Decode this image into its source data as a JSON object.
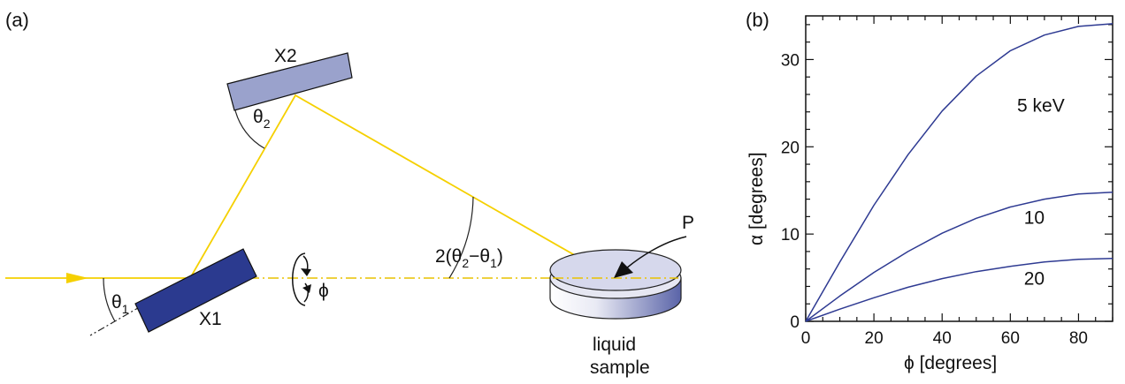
{
  "panel_a": {
    "label": "(a)",
    "crystal_x1": "X1",
    "crystal_x2": "X2",
    "theta1": {
      "sym": "θ",
      "sub": "1"
    },
    "theta2": {
      "sym": "θ",
      "sub": "2"
    },
    "angle_label": {
      "pre": "2(θ",
      "s2": "2",
      "mid": "−θ",
      "s1": "1",
      "post": ")"
    },
    "phi": "ϕ",
    "point": "P",
    "sample_line1": "liquid",
    "sample_line2": "sample",
    "colors": {
      "beam": "#f5d000",
      "x1": "#2b3a8f",
      "x2": "#9aa2cc",
      "sample_top": "#d6d8ec",
      "sample_side": "#5a64a8"
    }
  },
  "panel_b": {
    "label": "(b)",
    "xlabel": "ϕ [degrees]",
    "ylabel": "α [degrees]"
  },
  "chart_data": {
    "type": "line",
    "xlabel": "ϕ [degrees]",
    "ylabel": "α [degrees]",
    "xlim": [
      0,
      90
    ],
    "ylim": [
      0,
      35
    ],
    "xticks": [
      0,
      20,
      40,
      60,
      80
    ],
    "yticks": [
      0,
      10,
      20,
      30
    ],
    "grid": false,
    "line_color": "#2e3a92",
    "x": [
      0,
      10,
      20,
      30,
      40,
      50,
      60,
      70,
      80,
      90
    ],
    "series": [
      {
        "name": "5 keV",
        "values": [
          0,
          6.8,
          13.3,
          19.1,
          24.1,
          28.1,
          31.0,
          32.8,
          33.8,
          34.1
        ]
      },
      {
        "name": "10",
        "values": [
          0,
          2.9,
          5.6,
          8.0,
          10.1,
          11.8,
          13.1,
          14.0,
          14.6,
          14.8
        ]
      },
      {
        "name": "20",
        "values": [
          0,
          1.4,
          2.7,
          3.9,
          4.9,
          5.7,
          6.3,
          6.8,
          7.1,
          7.2
        ]
      }
    ]
  }
}
